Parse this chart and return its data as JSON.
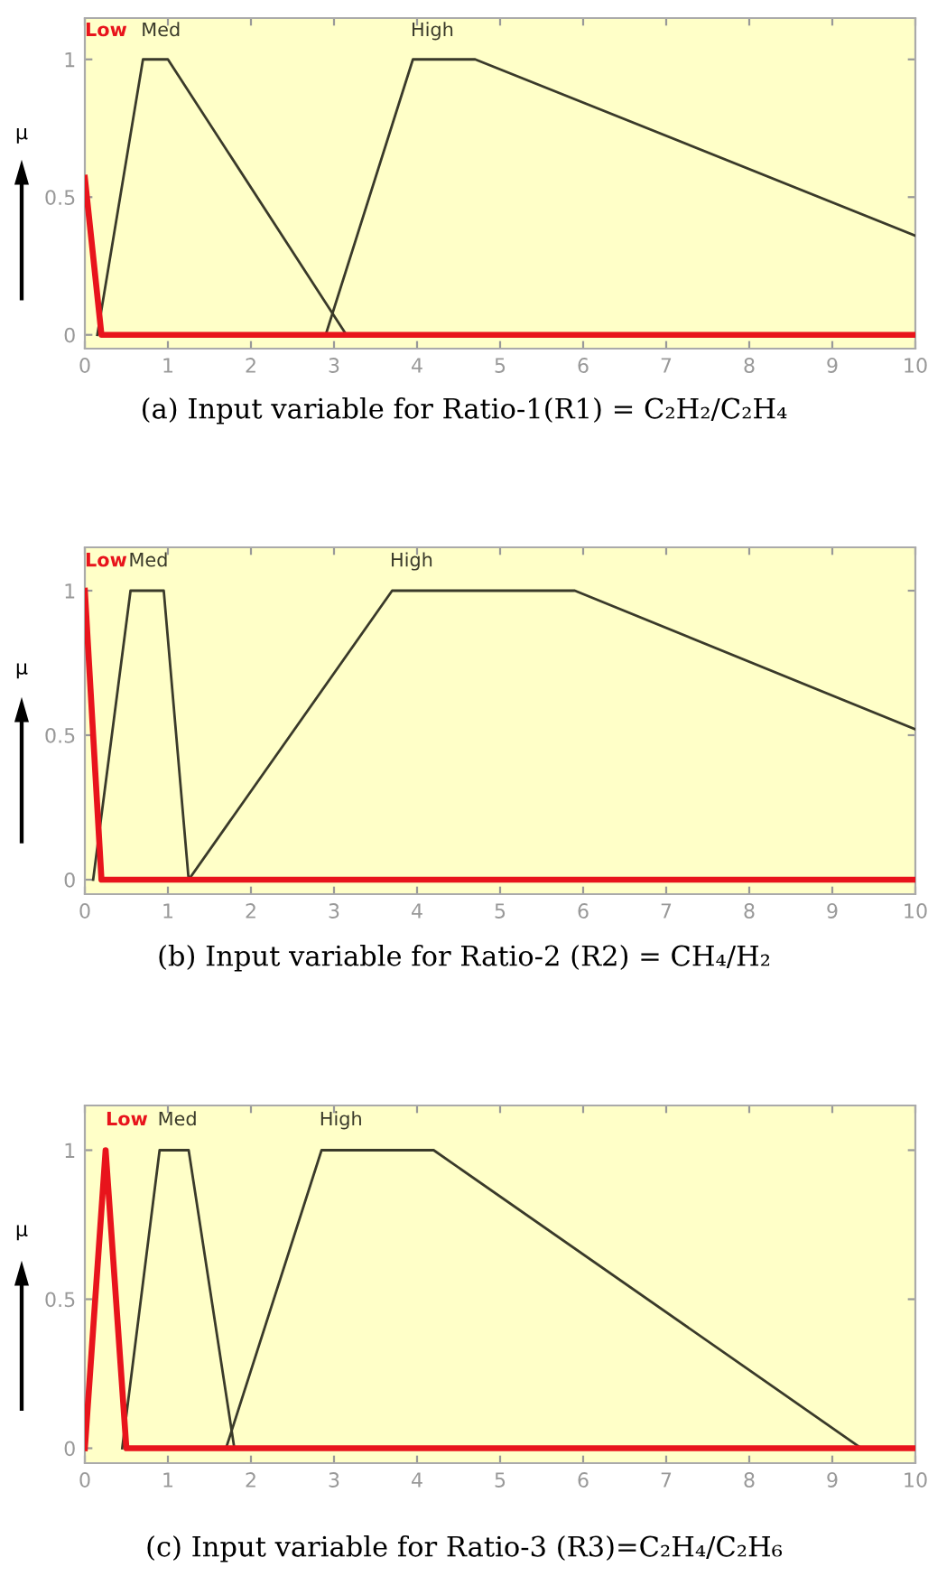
{
  "chart_data": [
    {
      "type": "line",
      "title": "(a) Input variable for Ratio-1(R1) = C₂H₂/C₂H₄",
      "ylabel": "μ",
      "xlim": [
        0,
        10
      ],
      "ylim": [
        -0.05,
        1.15
      ],
      "xticks": [
        0,
        1,
        2,
        3,
        4,
        5,
        6,
        7,
        8,
        9,
        10
      ],
      "yticks": [
        0,
        0.5,
        1
      ],
      "grid": false,
      "legend": false,
      "series": [
        {
          "name": "Low",
          "color": "#e8141c",
          "x": [
            0,
            0.2,
            10
          ],
          "values": [
            0.57,
            0,
            0
          ]
        },
        {
          "name": "Med",
          "color": "#3a3a2a",
          "x": [
            0.15,
            0.7,
            1,
            3.15
          ],
          "values": [
            0,
            1,
            1,
            0
          ]
        },
        {
          "name": "High",
          "color": "#3a3a2a",
          "x": [
            2.9,
            3.95,
            4.7,
            10
          ],
          "values": [
            0,
            1,
            1,
            0.36
          ]
        }
      ]
    },
    {
      "type": "line",
      "title": "(b) Input variable for Ratio-2 (R2) = CH₄/H₂",
      "ylabel": "μ",
      "xlim": [
        0,
        10
      ],
      "ylim": [
        -0.05,
        1.15
      ],
      "xticks": [
        0,
        1,
        2,
        3,
        4,
        5,
        6,
        7,
        8,
        9,
        10
      ],
      "yticks": [
        0,
        0.5,
        1
      ],
      "grid": false,
      "legend": false,
      "series": [
        {
          "name": "Low",
          "color": "#e8141c",
          "x": [
            0,
            0.2,
            10
          ],
          "values": [
            1,
            0,
            0
          ]
        },
        {
          "name": "Med",
          "color": "#3a3a2a",
          "x": [
            0.1,
            0.55,
            0.95,
            1.25
          ],
          "values": [
            0,
            1,
            1,
            0
          ]
        },
        {
          "name": "High",
          "color": "#3a3a2a",
          "x": [
            1.25,
            3.7,
            5.9,
            10
          ],
          "values": [
            0,
            1,
            1,
            0.52
          ]
        }
      ]
    },
    {
      "type": "line",
      "title": "(c) Input variable for Ratio-3 (R3)=C₂H₄/C₂H₆",
      "ylabel": "μ",
      "xlim": [
        0,
        10
      ],
      "ylim": [
        -0.05,
        1.15
      ],
      "xticks": [
        0,
        1,
        2,
        3,
        4,
        5,
        6,
        7,
        8,
        9,
        10
      ],
      "yticks": [
        0,
        0.5,
        1
      ],
      "grid": false,
      "legend": false,
      "series": [
        {
          "name": "Low",
          "color": "#e8141c",
          "x": [
            0,
            0.25,
            0.5,
            10
          ],
          "values": [
            0,
            1,
            0,
            0
          ]
        },
        {
          "name": "Med",
          "color": "#3a3a2a",
          "x": [
            0.45,
            0.9,
            1.25,
            1.8
          ],
          "values": [
            0,
            1,
            1,
            0
          ]
        },
        {
          "name": "High",
          "color": "#3a3a2a",
          "x": [
            1.7,
            2.85,
            4.2,
            9.35
          ],
          "values": [
            0,
            1,
            1,
            0
          ]
        }
      ]
    }
  ]
}
